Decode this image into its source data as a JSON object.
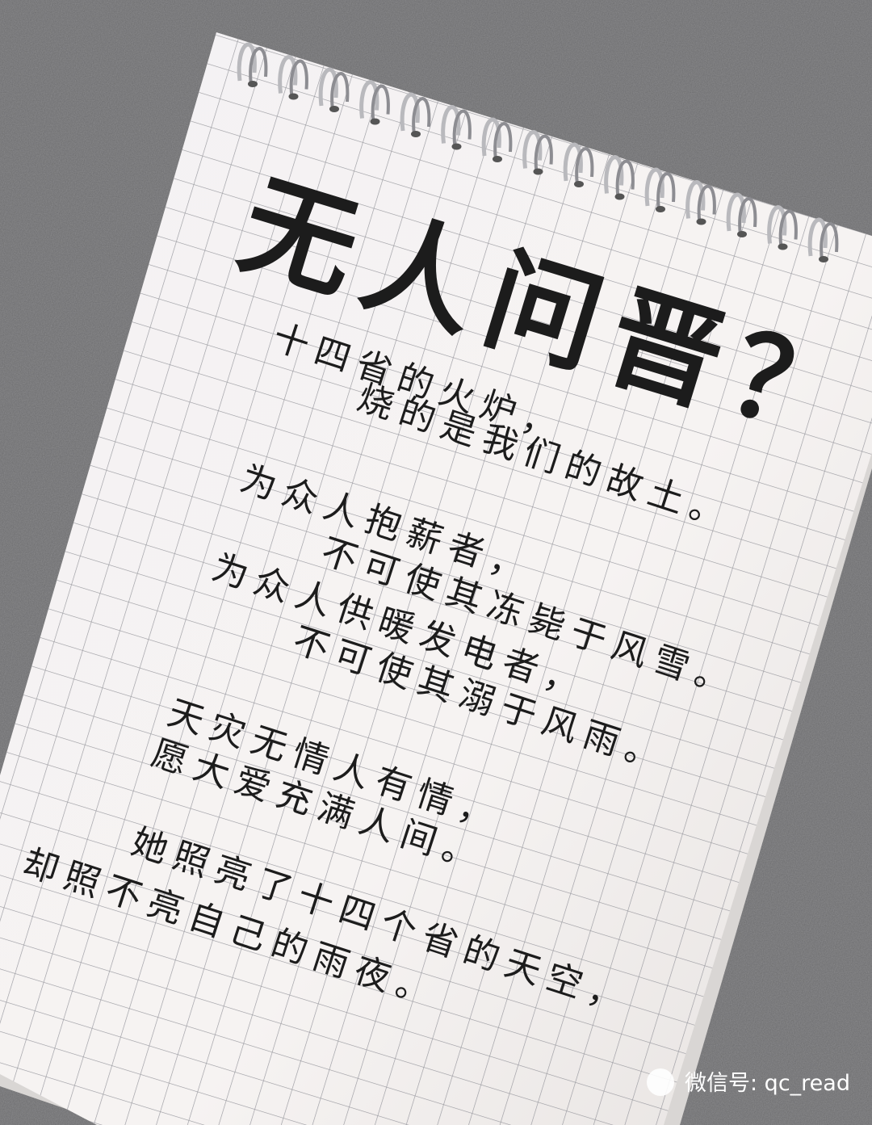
{
  "title": "无人问晋？",
  "lines": [
    "十四省的火炉，",
    "烧的是我们的故土。",
    "为众人抱薪者，",
    "不可使其冻毙于风雪。",
    "为众人供暖发电者，",
    "不可使其溺于风雨。",
    "天灾无情人有情，",
    "愿大爱充满人间。",
    "她照亮了十四个省的天空，",
    "却照不亮自己的雨夜。"
  ],
  "watermark": "微信号: qc_read"
}
